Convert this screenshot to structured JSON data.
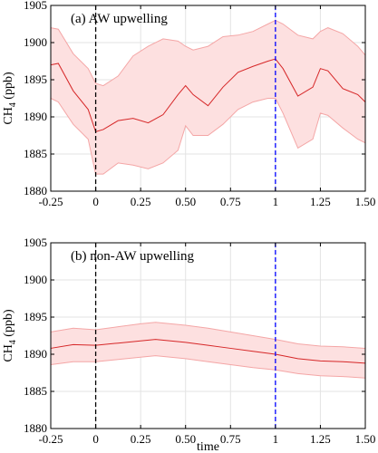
{
  "chart_data": [
    {
      "type": "line",
      "panel_label": "(a) AW upwelling",
      "ylabel_main": "CH",
      "ylabel_sub": "4",
      "ylabel_unit": " (ppb)",
      "xlim": [
        -0.25,
        1.5
      ],
      "ylim": [
        1880,
        1905
      ],
      "xticks": [
        "-0.25",
        "0",
        "0.25",
        "0.50",
        "0.75",
        "1",
        "1.25",
        "1.50"
      ],
      "yticks": [
        "1880",
        "1885",
        "1890",
        "1895",
        "1900",
        "1905"
      ],
      "grid": true,
      "vlines": [
        {
          "x": 0,
          "color": "#000000",
          "style": "dashed"
        },
        {
          "x": 1,
          "color": "#0000ff",
          "style": "dashed"
        }
      ],
      "colors": {
        "line": "#d62728",
        "band": "#fde0e0",
        "band_edge": "#f4a6a6"
      },
      "x": [
        -0.25,
        -0.208,
        -0.125,
        -0.042,
        0,
        0.042,
        0.125,
        0.208,
        0.292,
        0.375,
        0.458,
        0.5,
        0.542,
        0.625,
        0.708,
        0.792,
        0.875,
        0.958,
        1,
        1.042,
        1.125,
        1.208,
        1.25,
        1.292,
        1.375,
        1.458,
        1.5
      ],
      "mean": [
        1897.0,
        1897.2,
        1893.5,
        1891.0,
        1888.0,
        1888.3,
        1889.5,
        1889.8,
        1889.2,
        1890.3,
        1893.0,
        1894.2,
        1893.0,
        1891.5,
        1894.0,
        1896.0,
        1896.8,
        1897.5,
        1897.8,
        1896.5,
        1892.8,
        1894.0,
        1896.5,
        1896.2,
        1893.8,
        1893.0,
        1892.0
      ],
      "upper": [
        1902.0,
        1901.8,
        1898.5,
        1896.5,
        1894.5,
        1894.2,
        1895.5,
        1898.2,
        1899.5,
        1900.5,
        1900.2,
        1899.5,
        1899.0,
        1899.5,
        1900.8,
        1901.0,
        1901.5,
        1902.5,
        1903.0,
        1902.5,
        1901.0,
        1900.5,
        1901.5,
        1902.0,
        1901.2,
        1899.5,
        1898.3
      ],
      "lower": [
        1892.5,
        1892.0,
        1889.0,
        1887.0,
        1882.3,
        1882.3,
        1883.8,
        1883.5,
        1883.0,
        1883.8,
        1885.5,
        1888.8,
        1887.5,
        1887.5,
        1889.0,
        1891.0,
        1892.0,
        1892.5,
        1892.5,
        1890.5,
        1885.8,
        1887.0,
        1890.5,
        1890.2,
        1888.5,
        1887.0,
        1886.5
      ]
    },
    {
      "type": "line",
      "panel_label": "(b) non-AW upwelling",
      "ylabel_main": "CH",
      "ylabel_sub": "4",
      "ylabel_unit": " (ppb)",
      "xlabel": "time",
      "xlim": [
        -0.25,
        1.5
      ],
      "ylim": [
        1880,
        1905
      ],
      "xticks": [
        "-0.25",
        "0",
        "0.25",
        "0.50",
        "0.75",
        "1",
        "1.25",
        "1.50"
      ],
      "yticks": [
        "1880",
        "1885",
        "1890",
        "1895",
        "1900",
        "1905"
      ],
      "grid": true,
      "vlines": [
        {
          "x": 0,
          "color": "#000000",
          "style": "dashed"
        },
        {
          "x": 1,
          "color": "#0000ff",
          "style": "dashed"
        }
      ],
      "colors": {
        "line": "#d62728",
        "band": "#fde0e0",
        "band_edge": "#f4a6a6"
      },
      "x": [
        -0.25,
        -0.125,
        0,
        0.125,
        0.25,
        0.333,
        0.5,
        0.625,
        0.75,
        0.875,
        1,
        1.125,
        1.25,
        1.375,
        1.5
      ],
      "mean": [
        1890.8,
        1891.3,
        1891.2,
        1891.5,
        1891.8,
        1892.0,
        1891.6,
        1891.2,
        1890.8,
        1890.4,
        1890.0,
        1889.4,
        1889.1,
        1889.0,
        1888.8
      ],
      "upper": [
        1893.0,
        1893.5,
        1893.3,
        1893.7,
        1894.1,
        1894.3,
        1893.9,
        1893.5,
        1893.0,
        1892.5,
        1892.0,
        1891.4,
        1891.1,
        1891.0,
        1890.8
      ],
      "lower": [
        1888.6,
        1889.0,
        1889.0,
        1889.3,
        1889.6,
        1889.8,
        1889.4,
        1889.0,
        1888.6,
        1888.2,
        1887.9,
        1887.4,
        1887.1,
        1887.0,
        1886.8
      ]
    }
  ]
}
